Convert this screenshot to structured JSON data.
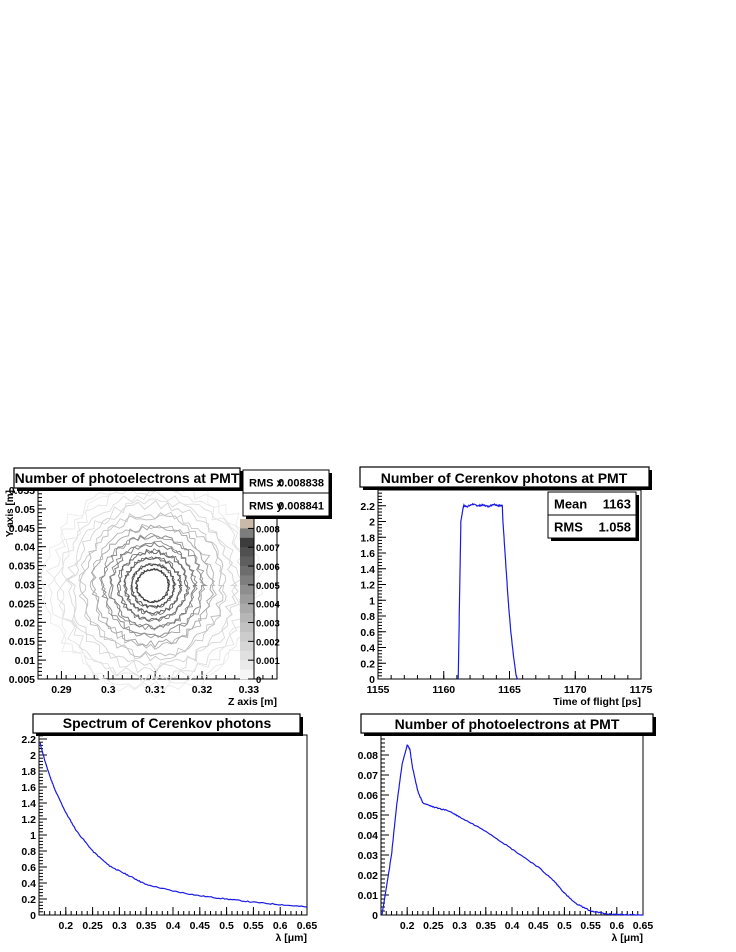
{
  "chart_data": [
    {
      "type": "contour",
      "title": "Number of photoelectrons at PMT",
      "xlabel": "Z axis [m]",
      "ylabel": "Y axis [m]",
      "xlim": [
        0.285,
        0.336
      ],
      "ylim": [
        0.005,
        0.055
      ],
      "xticks": [
        "0.29",
        "0.3",
        "0.31",
        "0.32",
        "0.33"
      ],
      "yticks": [
        "0.005",
        "0.01",
        "0.015",
        "0.02",
        "0.025",
        "0.03",
        "0.035",
        "0.04",
        "0.045",
        "0.05",
        "0.055"
      ],
      "center": [
        0.3095,
        0.0297
      ],
      "ring_radii": [
        0.0034,
        0.0045,
        0.0058,
        0.0072,
        0.0088,
        0.0105,
        0.0125,
        0.0148,
        0.0172,
        0.0195,
        0.0218
      ],
      "ring_levels": [
        0.0075,
        0.007,
        0.0065,
        0.006,
        0.0055,
        0.005,
        0.004,
        0.003,
        0.002,
        0.0015,
        0.001
      ],
      "colorbar": {
        "zmin": 0,
        "zmax": 0.0085,
        "ticks": [
          "0",
          "0.001",
          "0.002",
          "0.003",
          "0.004",
          "0.005",
          "0.006",
          "0.007",
          "0.008"
        ],
        "levels": [
          0.0085,
          0.008,
          0.0075,
          0.007,
          0.0065,
          0.006,
          0.0055,
          0.005,
          0.0045,
          0.004,
          0.0035,
          0.003,
          0.0025,
          0.002,
          0.0015,
          0.001,
          0.0005
        ],
        "colors": [
          "#c8b9a9",
          "#7d7d7d",
          "#3c3c3c",
          "#505050",
          "#5e5e5e",
          "#6d6d6d",
          "#7e7e7e",
          "#8e8e8e",
          "#9c9c9c",
          "#aaaaaa",
          "#b6b6b6",
          "#c2c2c2",
          "#cccccc",
          "#d6d6d6",
          "#e0e0e0",
          "#eaeaea",
          "#f6f6f6"
        ]
      },
      "stats": [
        {
          "label": "RMS x",
          "value": "0.008838"
        },
        {
          "label": "RMS y",
          "value": "0.008841"
        }
      ]
    },
    {
      "type": "line",
      "title": "Number of Cerenkov photons at PMT",
      "xlabel": "Time of flight [ps]",
      "ylabel": "",
      "xlim": [
        1155,
        1175
      ],
      "ylim": [
        0,
        2.4
      ],
      "xticks": [
        "1155",
        "1160",
        "1165",
        "1170",
        "1175"
      ],
      "yticks": [
        "0",
        "0.2",
        "0.4",
        "0.6",
        "0.8",
        "1",
        "1.2",
        "1.4",
        "1.6",
        "1.8",
        "2",
        "2.2"
      ],
      "color": "#1a1ae6",
      "series": [
        {
          "x": [
            1161.1,
            1161.2,
            1161.3,
            1161.5,
            1161.8,
            1162.2,
            1162.6,
            1163.0,
            1163.4,
            1163.8,
            1164.2,
            1164.45,
            1164.5,
            1164.7,
            1164.9,
            1165.1,
            1165.3,
            1165.5,
            1165.6
          ],
          "y": [
            0,
            1.0,
            2.0,
            2.2,
            2.19,
            2.22,
            2.2,
            2.21,
            2.19,
            2.22,
            2.2,
            2.21,
            2.0,
            1.5,
            1.0,
            0.6,
            0.3,
            0.05,
            0
          ]
        }
      ],
      "stats": [
        {
          "label": "Mean",
          "value": "1163"
        },
        {
          "label": "RMS",
          "value": "1.058"
        }
      ]
    },
    {
      "type": "line",
      "title": "Spectrum of Cerenkov photons",
      "xlabel": "λ [μm]",
      "ylabel": "",
      "xlim": [
        0.15,
        0.65
      ],
      "ylim": [
        0,
        2.25
      ],
      "xticks": [
        "0.2",
        "0.25",
        "0.3",
        "0.35",
        "0.4",
        "0.45",
        "0.5",
        "0.55",
        "0.6",
        "0.65"
      ],
      "yticks": [
        "0",
        "0.2",
        "0.4",
        "0.6",
        "0.8",
        "1",
        "1.2",
        "1.4",
        "1.6",
        "1.8",
        "2",
        "2.2"
      ],
      "color": "#1a1ae6",
      "series": [
        {
          "x": [
            0.152,
            0.16,
            0.17,
            0.18,
            0.2,
            0.22,
            0.25,
            0.28,
            0.3,
            0.33,
            0.35,
            0.4,
            0.45,
            0.5,
            0.55,
            0.6,
            0.65
          ],
          "y": [
            2.15,
            1.95,
            1.74,
            1.56,
            1.28,
            1.05,
            0.8,
            0.62,
            0.55,
            0.45,
            0.38,
            0.3,
            0.24,
            0.2,
            0.16,
            0.13,
            0.1
          ]
        }
      ]
    },
    {
      "type": "line",
      "title": "Number of photoelectrons at PMT",
      "xlabel": "λ [μm]",
      "ylabel": "",
      "xlim": [
        0.15,
        0.65
      ],
      "ylim": [
        0,
        0.09
      ],
      "xticks": [
        "0.2",
        "0.25",
        "0.3",
        "0.35",
        "0.4",
        "0.45",
        "0.5",
        "0.55",
        "0.6",
        "0.65"
      ],
      "yticks": [
        "0",
        "0.01",
        "0.02",
        "0.03",
        "0.04",
        "0.05",
        "0.06",
        "0.07",
        "0.08"
      ],
      "color": "#1a1ae6",
      "series": [
        {
          "x": [
            0.152,
            0.17,
            0.18,
            0.19,
            0.2,
            0.205,
            0.21,
            0.22,
            0.23,
            0.25,
            0.28,
            0.3,
            0.35,
            0.4,
            0.45,
            0.48,
            0.5,
            0.52,
            0.55,
            0.58,
            0.6,
            0.62,
            0.65
          ],
          "y": [
            0.0,
            0.03,
            0.055,
            0.075,
            0.085,
            0.083,
            0.074,
            0.062,
            0.056,
            0.054,
            0.052,
            0.049,
            0.042,
            0.033,
            0.024,
            0.017,
            0.011,
            0.006,
            0.002,
            0.0005,
            0.0003,
            0.0001,
            0.0
          ]
        }
      ]
    }
  ]
}
